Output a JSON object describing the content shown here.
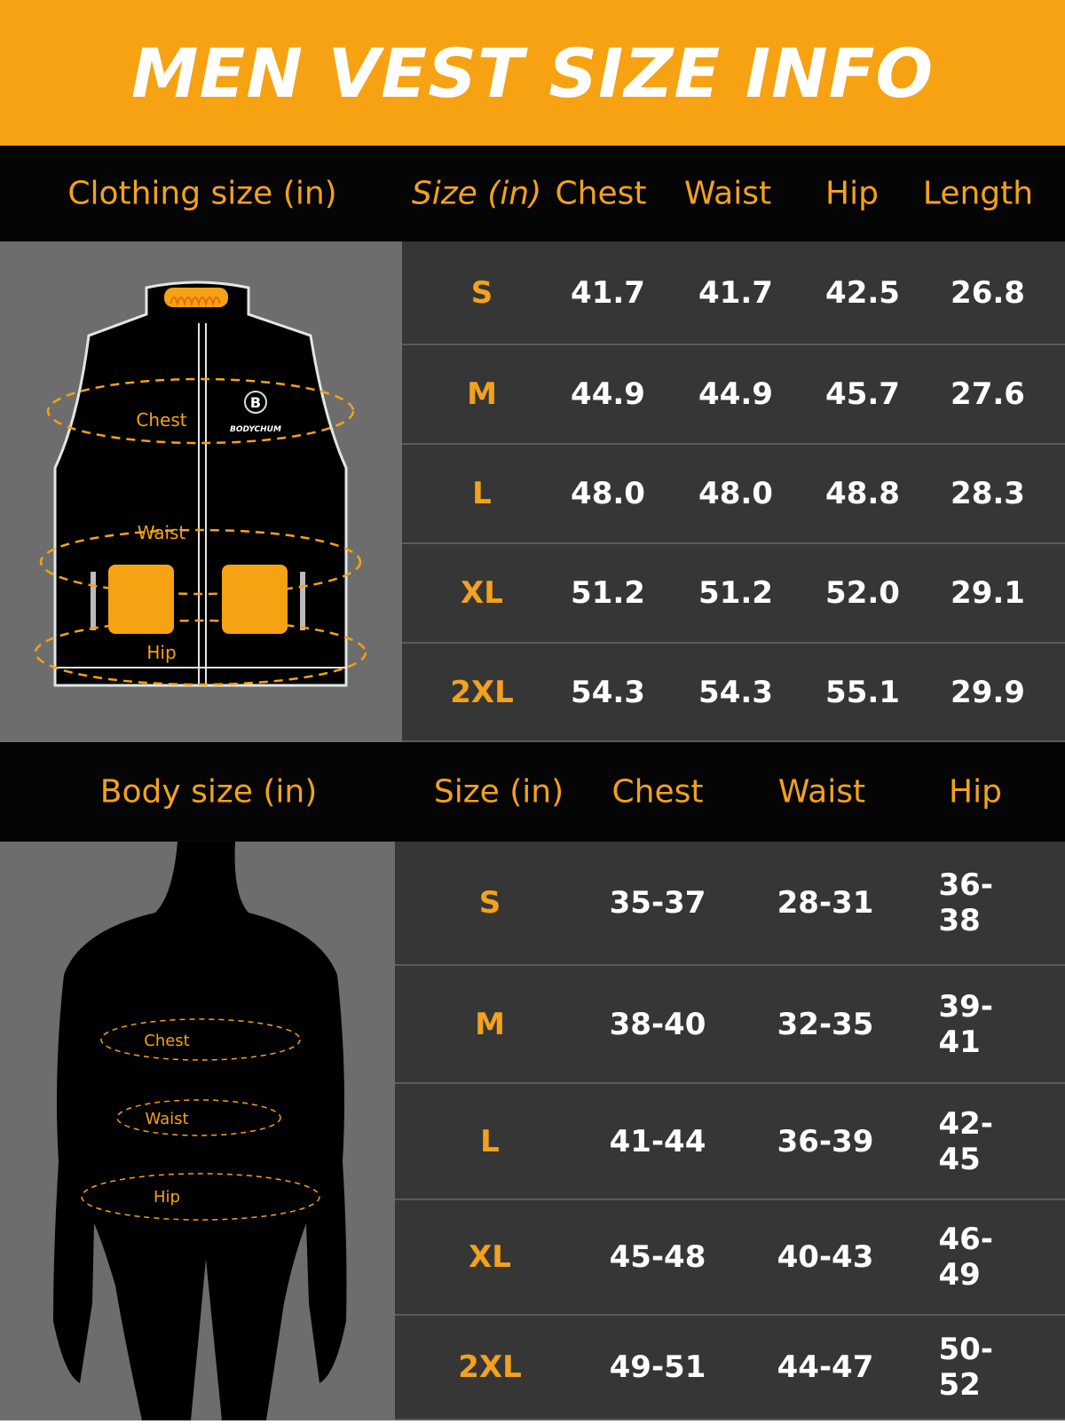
{
  "title": "MEN VEST SIZE INFO",
  "colors": {
    "accent": "#f6a212",
    "header_bg": "#050505",
    "panel_bg": "#6d6d6d",
    "table_bg": "#363636"
  },
  "clothing": {
    "section_label": "Clothing size (in)",
    "headers": [
      "Size (in)",
      "Chest",
      "Waist",
      "Hip",
      "Length"
    ],
    "rows": [
      [
        "S",
        "41.7",
        "41.7",
        "42.5",
        "26.8"
      ],
      [
        "M",
        "44.9",
        "44.9",
        "45.7",
        "27.6"
      ],
      [
        "L",
        "48.0",
        "48.0",
        "48.8",
        "28.3"
      ],
      [
        "XL",
        "51.2",
        "51.2",
        "52.0",
        "29.1"
      ],
      [
        "2XL",
        "54.3",
        "54.3",
        "55.1",
        "29.9"
      ]
    ],
    "diagram_labels": {
      "chest": "Chest",
      "waist": "Waist",
      "hip": "Hip",
      "brand": "BODYCHUM"
    }
  },
  "body": {
    "section_label": "Body size (in)",
    "headers": [
      "Size (in)",
      "Chest",
      "Waist",
      "Hip"
    ],
    "rows": [
      [
        "S",
        "35-37",
        "28-31",
        "36-38"
      ],
      [
        "M",
        "38-40",
        "32-35",
        "39-41"
      ],
      [
        "L",
        "41-44",
        "36-39",
        "42-45"
      ],
      [
        "XL",
        "45-48",
        "40-43",
        "46-49"
      ],
      [
        "2XL",
        "49-51",
        "44-47",
        "50-52"
      ]
    ],
    "diagram_labels": {
      "chest": "Chest",
      "waist": "Waist",
      "hip": "Hip"
    }
  }
}
